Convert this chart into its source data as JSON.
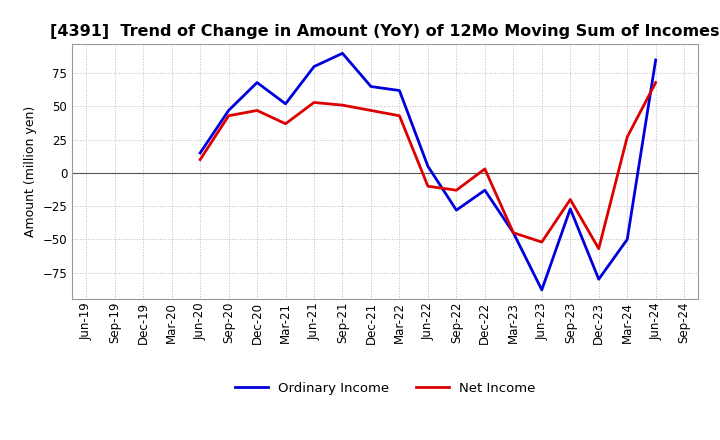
{
  "title": "[4391]  Trend of Change in Amount (YoY) of 12Mo Moving Sum of Incomes",
  "ylabel": "Amount (million yen)",
  "x_labels": [
    "Jun-19",
    "Sep-19",
    "Dec-19",
    "Mar-20",
    "Jun-20",
    "Sep-20",
    "Dec-20",
    "Mar-21",
    "Jun-21",
    "Sep-21",
    "Dec-21",
    "Mar-22",
    "Jun-22",
    "Sep-22",
    "Dec-22",
    "Mar-23",
    "Jun-23",
    "Sep-23",
    "Dec-23",
    "Mar-24",
    "Jun-24",
    "Sep-24"
  ],
  "ordinary_income": [
    null,
    null,
    null,
    null,
    15,
    47,
    68,
    52,
    80,
    90,
    65,
    62,
    5,
    -28,
    -13,
    -45,
    -88,
    -27,
    -80,
    -50,
    85,
    null
  ],
  "net_income": [
    null,
    null,
    null,
    null,
    10,
    43,
    47,
    37,
    53,
    51,
    47,
    43,
    -10,
    -13,
    3,
    -45,
    -52,
    -20,
    -57,
    27,
    68,
    null
  ],
  "ordinary_color": "#0000dd",
  "net_color": "#dd0000",
  "ylim": [
    -95,
    97
  ],
  "yticks": [
    -75,
    -50,
    -25,
    0,
    25,
    50,
    75
  ],
  "background_color": "#ffffff",
  "grid_color": "#bbbbbb",
  "legend_labels": [
    "Ordinary Income",
    "Net Income"
  ],
  "title_fontsize": 11.5,
  "ylabel_fontsize": 9,
  "tick_fontsize": 8.5
}
